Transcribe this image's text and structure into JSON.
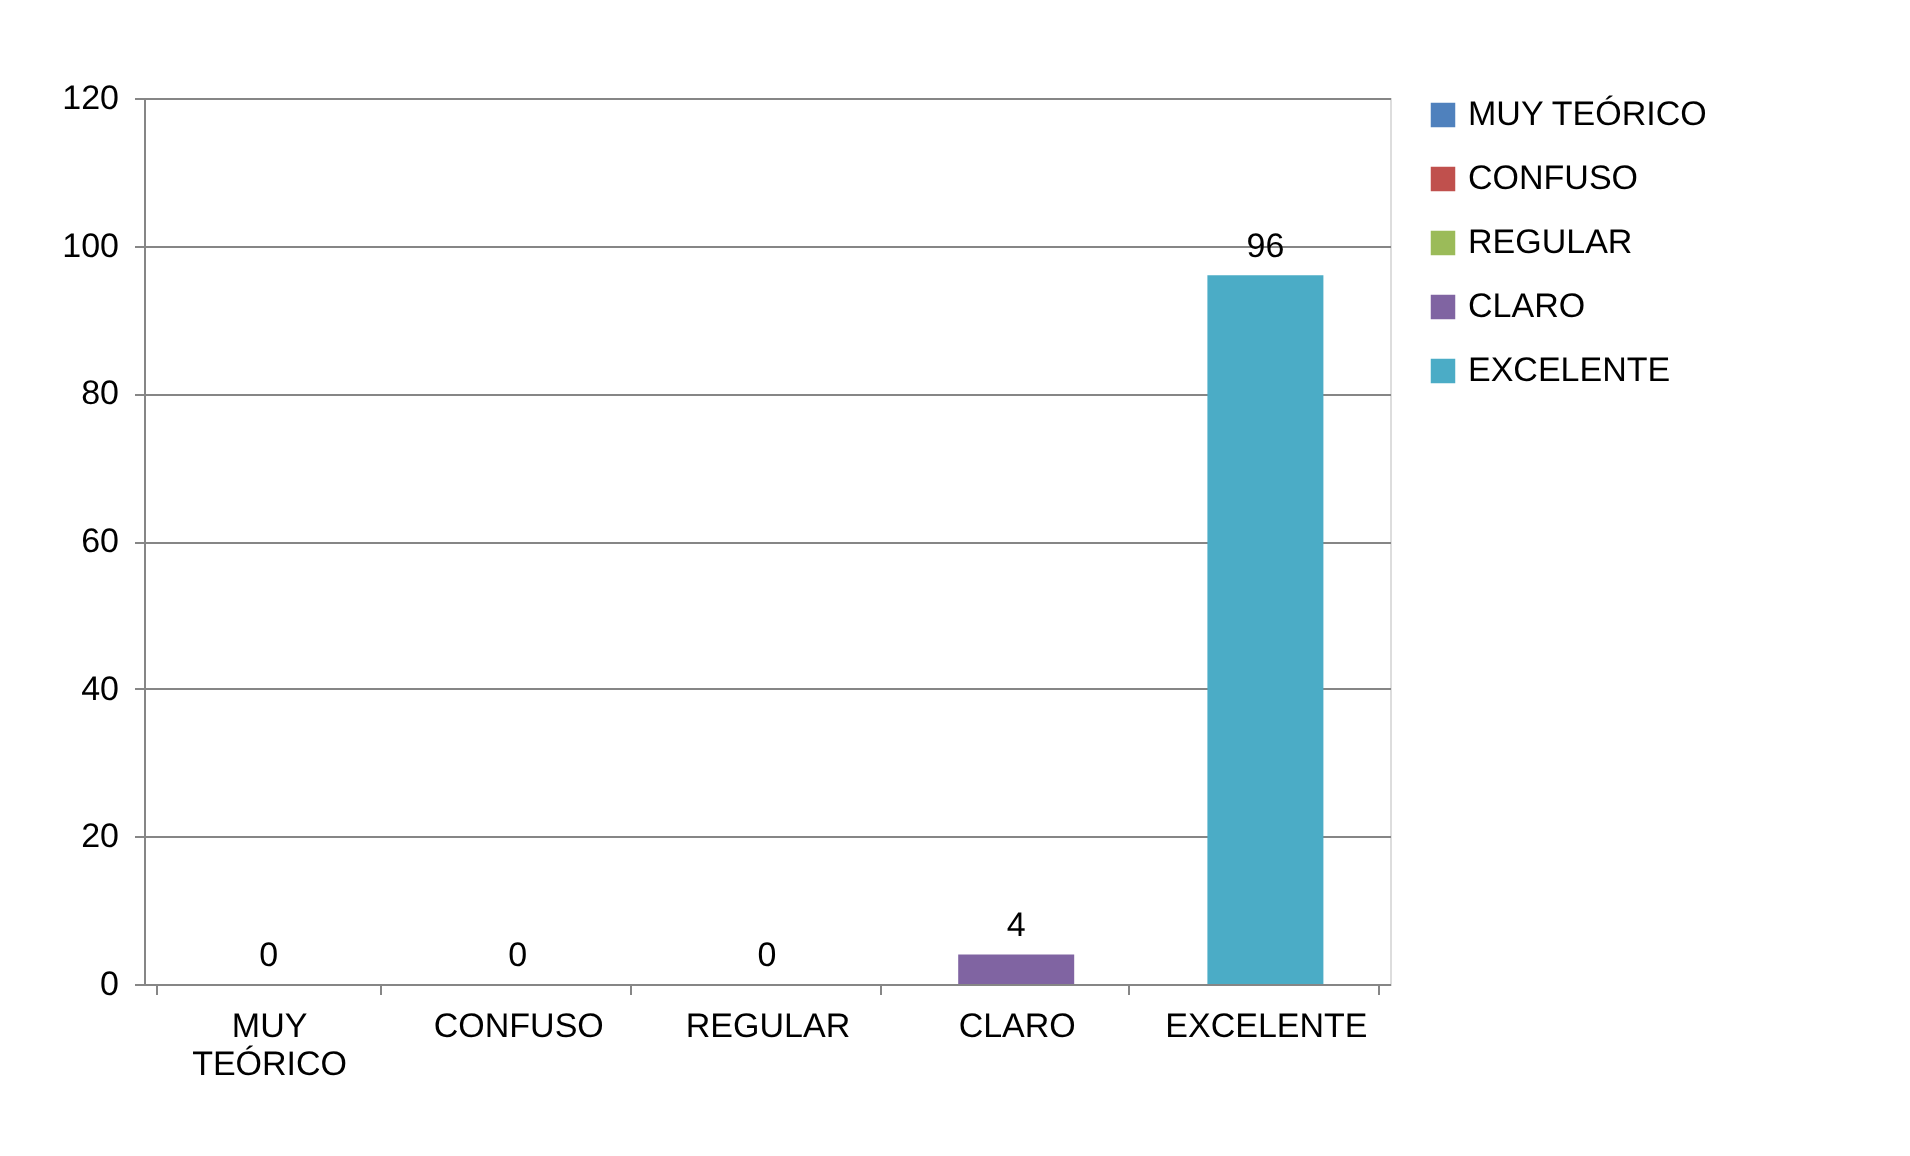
{
  "chart_data": {
    "type": "bar",
    "categories": [
      "MUY TEÓRICO",
      "CONFUSO",
      "REGULAR",
      "CLARO",
      "EXCELENTE"
    ],
    "series": [
      {
        "name": "MUY TEÓRICO",
        "color": "#4f81bd",
        "values": [
          0,
          null,
          null,
          null,
          null
        ]
      },
      {
        "name": "CONFUSO",
        "color": "#c0504d",
        "values": [
          null,
          0,
          null,
          null,
          null
        ]
      },
      {
        "name": "REGULAR",
        "color": "#9bbb59",
        "values": [
          null,
          null,
          0,
          null,
          null
        ]
      },
      {
        "name": "CLARO",
        "color": "#8064a2",
        "values": [
          null,
          null,
          null,
          4,
          null
        ]
      },
      {
        "name": "EXCELENTE",
        "color": "#4bacc6",
        "values": [
          null,
          null,
          null,
          null,
          96
        ]
      }
    ],
    "ylim": [
      0,
      120
    ],
    "yticks": [
      0,
      20,
      40,
      60,
      80,
      100,
      120
    ],
    "grid": "y",
    "legend": "right",
    "data_labels": true
  }
}
